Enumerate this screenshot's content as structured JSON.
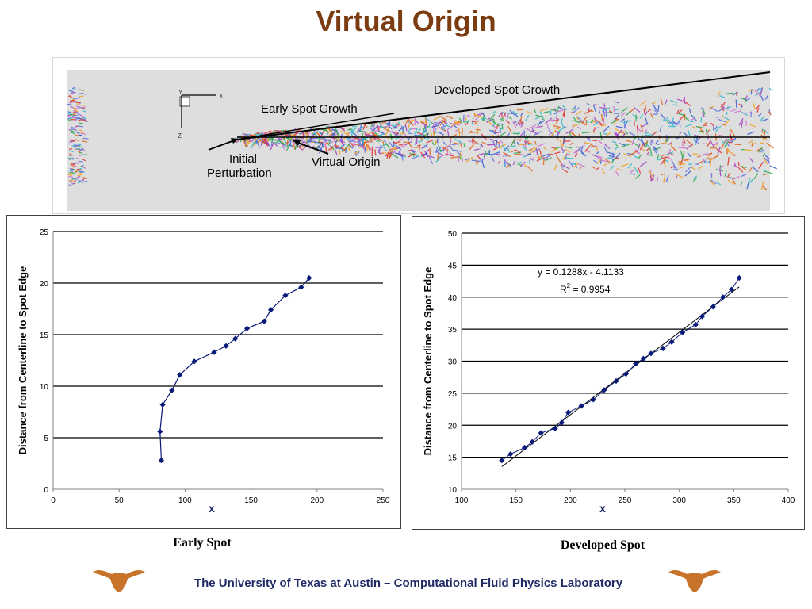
{
  "slide": {
    "title": "Virtual Origin",
    "colors": {
      "title": "#7a3c10",
      "footer_text": "#1f2a66",
      "logo": "#c8732a",
      "rule": "#b08d4a",
      "series": "#0a1a78"
    },
    "footer": "The University of Texas at Austin – Computational Fluid Physics Laboratory",
    "logo_icon": "longhorn-icon"
  },
  "simulation": {
    "labels": {
      "developed": "Developed Spot Growth",
      "early": "Early Spot Growth",
      "initial": "Initial\nPerturbation",
      "virtual_origin": "Virtual Origin"
    },
    "axes_glyph": {
      "x": "X",
      "y": "Y",
      "z": "Z"
    }
  },
  "captions": {
    "early": "Early Spot",
    "developed": "Developed Spot"
  },
  "chart_data": [
    {
      "type": "line",
      "name": "early",
      "title": "",
      "xlabel": "x",
      "ylabel": "Distance from Centerline to Spot Edge",
      "xlim": [
        0,
        250
      ],
      "ylim": [
        0,
        25
      ],
      "xticks": [
        0,
        50,
        100,
        150,
        200,
        250
      ],
      "yticks": [
        0,
        5,
        10,
        15,
        20,
        25
      ],
      "grid": "horizontal",
      "x": [
        82,
        81,
        83,
        90,
        96,
        107,
        122,
        131,
        138,
        147,
        160,
        165,
        176,
        188,
        194
      ],
      "y": [
        2.8,
        5.6,
        8.2,
        9.6,
        11.1,
        12.4,
        13.3,
        13.9,
        14.6,
        15.6,
        16.3,
        17.4,
        18.8,
        19.6,
        20.5
      ]
    },
    {
      "type": "scatter",
      "name": "developed",
      "title": "",
      "xlabel": "x",
      "ylabel": "Distance from Centerline to Spot Edge",
      "xlim": [
        100,
        400
      ],
      "ylim": [
        10,
        50
      ],
      "xticks": [
        100,
        150,
        200,
        250,
        300,
        350,
        400
      ],
      "yticks": [
        10,
        15,
        20,
        25,
        30,
        35,
        40,
        45,
        50
      ],
      "grid": "horizontal",
      "x": [
        137,
        145,
        158,
        165,
        173,
        186,
        192,
        198,
        210,
        221,
        231,
        242,
        251,
        260,
        267,
        274,
        285,
        293,
        303,
        315,
        321,
        331,
        340,
        348,
        355
      ],
      "y": [
        14.5,
        15.5,
        16.5,
        17.4,
        18.8,
        19.5,
        20.4,
        22.0,
        23.0,
        24.0,
        25.5,
        26.9,
        28.0,
        29.6,
        30.4,
        31.2,
        32.0,
        33.0,
        34.5,
        35.7,
        37.0,
        38.5,
        40.0,
        41.2,
        43.0
      ],
      "trendline": {
        "slope": 0.1288,
        "intercept": -4.1133,
        "x_range": [
          137,
          355
        ]
      },
      "annotations": [
        "y = 0.1288x - 4.1133",
        "R",
        "2",
        " = 0.9954"
      ]
    }
  ]
}
